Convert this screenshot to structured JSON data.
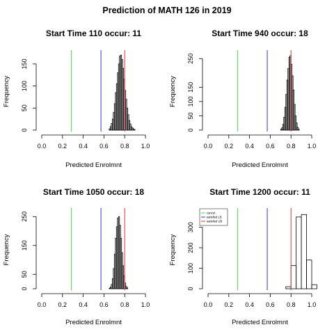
{
  "title": "Prediction of MATH 126 in 2019",
  "chart_data": [
    {
      "type": "bar",
      "subtype": "histogram",
      "title": "Start Time 110 occur: 11",
      "xlabel": "Predicted Enrolmnt",
      "ylabel": "Frequency",
      "xlim": [
        0,
        1
      ],
      "ylim": [
        0,
        175
      ],
      "xticks": [
        "0.0",
        "0.2",
        "0.4",
        "0.6",
        "0.8",
        "1.0"
      ],
      "yticks": [
        "0",
        "50",
        "100",
        "150"
      ],
      "bins": [
        [
          0.65,
          0.66
        ],
        [
          0.66,
          0.67
        ],
        [
          0.67,
          0.68
        ],
        [
          0.68,
          0.69
        ],
        [
          0.69,
          0.7
        ],
        [
          0.7,
          0.71
        ],
        [
          0.71,
          0.72
        ],
        [
          0.72,
          0.73
        ],
        [
          0.73,
          0.74
        ],
        [
          0.74,
          0.75
        ],
        [
          0.75,
          0.76
        ],
        [
          0.76,
          0.77
        ],
        [
          0.77,
          0.78
        ],
        [
          0.78,
          0.79
        ],
        [
          0.79,
          0.8
        ],
        [
          0.8,
          0.81
        ],
        [
          0.81,
          0.82
        ],
        [
          0.82,
          0.83
        ],
        [
          0.83,
          0.84
        ],
        [
          0.84,
          0.85
        ],
        [
          0.85,
          0.86
        ],
        [
          0.86,
          0.87
        ],
        [
          0.87,
          0.88
        ],
        [
          0.88,
          0.89
        ],
        [
          0.89,
          0.9
        ]
      ],
      "counts": [
        3,
        8,
        15,
        25,
        40,
        60,
        85,
        105,
        130,
        150,
        168,
        170,
        160,
        140,
        115,
        90,
        70,
        50,
        35,
        22,
        14,
        8,
        5,
        3,
        1
      ],
      "vlines": [
        {
          "name": "cancel",
          "x": 0.286,
          "color": "#44dd44"
        },
        {
          "name": "satisfied LB",
          "x": 0.571,
          "color": "#3333dd"
        },
        {
          "name": "satisfied UB",
          "x": 0.8,
          "color": "#dd3333"
        }
      ]
    },
    {
      "type": "bar",
      "subtype": "histogram",
      "title": "Start Time 940 occur: 18",
      "xlabel": "Predicted Enrolmnt",
      "ylabel": "Frequency",
      "xlim": [
        0,
        1
      ],
      "ylim": [
        0,
        270
      ],
      "xticks": [
        "0.0",
        "0.2",
        "0.4",
        "0.6",
        "0.8",
        "1.0"
      ],
      "yticks": [
        "0",
        "50",
        "100",
        "150",
        "250"
      ],
      "bins": [
        [
          0.7,
          0.71
        ],
        [
          0.71,
          0.72
        ],
        [
          0.72,
          0.73
        ],
        [
          0.73,
          0.74
        ],
        [
          0.74,
          0.75
        ],
        [
          0.75,
          0.76
        ],
        [
          0.76,
          0.77
        ],
        [
          0.77,
          0.78
        ],
        [
          0.78,
          0.79
        ],
        [
          0.79,
          0.8
        ],
        [
          0.8,
          0.81
        ],
        [
          0.81,
          0.82
        ],
        [
          0.82,
          0.83
        ],
        [
          0.83,
          0.84
        ],
        [
          0.84,
          0.85
        ],
        [
          0.85,
          0.86
        ],
        [
          0.86,
          0.87
        ],
        [
          0.87,
          0.88
        ]
      ],
      "counts": [
        3,
        8,
        20,
        45,
        80,
        125,
        175,
        215,
        255,
        260,
        230,
        190,
        140,
        90,
        50,
        25,
        10,
        3
      ],
      "vlines": [
        {
          "name": "cancel",
          "x": 0.286,
          "color": "#44dd44"
        },
        {
          "name": "satisfied LB",
          "x": 0.571,
          "color": "#3333dd"
        },
        {
          "name": "satisfied UB",
          "x": 0.8,
          "color": "#dd3333"
        }
      ]
    },
    {
      "type": "bar",
      "subtype": "histogram",
      "title": "Start Time 1050 occur: 18",
      "xlabel": "Predicted Enrolmnt",
      "ylabel": "Frequency",
      "xlim": [
        0,
        1
      ],
      "ylim": [
        0,
        270
      ],
      "xticks": [
        "0.0",
        "0.2",
        "0.4",
        "0.6",
        "0.8",
        "1.0"
      ],
      "yticks": [
        "0",
        "50",
        "150",
        "250"
      ],
      "bins": [
        [
          0.65,
          0.66
        ],
        [
          0.66,
          0.67
        ],
        [
          0.67,
          0.68
        ],
        [
          0.68,
          0.69
        ],
        [
          0.69,
          0.7
        ],
        [
          0.7,
          0.71
        ],
        [
          0.71,
          0.72
        ],
        [
          0.72,
          0.73
        ],
        [
          0.73,
          0.74
        ],
        [
          0.74,
          0.75
        ],
        [
          0.75,
          0.76
        ],
        [
          0.76,
          0.77
        ],
        [
          0.77,
          0.78
        ],
        [
          0.78,
          0.79
        ],
        [
          0.79,
          0.8
        ],
        [
          0.8,
          0.81
        ],
        [
          0.81,
          0.82
        ],
        [
          0.82,
          0.83
        ]
      ],
      "counts": [
        2,
        6,
        15,
        35,
        70,
        120,
        175,
        215,
        245,
        250,
        220,
        175,
        125,
        80,
        45,
        20,
        8,
        3
      ],
      "vlines": [
        {
          "name": "cancel",
          "x": 0.286,
          "color": "#44dd44"
        },
        {
          "name": "satisfied LB",
          "x": 0.571,
          "color": "#3333dd"
        },
        {
          "name": "satisfied UB",
          "x": 0.8,
          "color": "#dd3333"
        }
      ]
    },
    {
      "type": "bar",
      "subtype": "histogram",
      "title": "Start Time 1200 occur: 11",
      "xlabel": "Predicted Enrolmnt",
      "ylabel": "Frequency",
      "xlim": [
        0,
        1
      ],
      "ylim": [
        0,
        380
      ],
      "xticks": [
        "0.0",
        "0.2",
        "0.4",
        "0.6",
        "0.8",
        "1.0"
      ],
      "yticks": [
        "0",
        "100",
        "200",
        "300"
      ],
      "bins": [
        [
          0.75,
          0.8
        ],
        [
          0.8,
          0.85
        ],
        [
          0.85,
          0.9
        ],
        [
          0.9,
          0.95
        ],
        [
          0.95,
          1.0
        ],
        [
          1.0,
          1.05
        ]
      ],
      "counts": [
        10,
        113,
        350,
        362,
        140,
        20
      ],
      "vlines": [
        {
          "name": "cancel",
          "x": 0.286,
          "color": "#44dd44"
        },
        {
          "name": "satisfied LB",
          "x": 0.571,
          "color": "#3333dd"
        },
        {
          "name": "satisfied UB",
          "x": 0.8,
          "color": "#dd3333"
        }
      ],
      "legend": {
        "position": "top-left",
        "entries": [
          {
            "label": "cancel",
            "color": "#44dd44"
          },
          {
            "label": "satisfied LB",
            "color": "#3333dd"
          },
          {
            "label": "satisfied UB",
            "color": "#dd3333"
          }
        ]
      }
    }
  ]
}
